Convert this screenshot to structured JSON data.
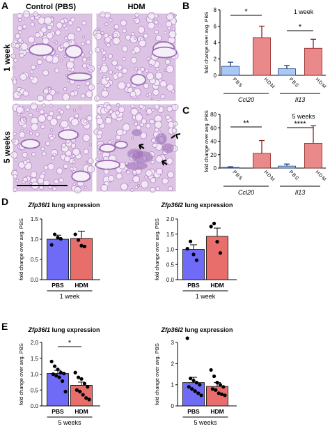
{
  "panel_letters": [
    "A",
    "B",
    "C",
    "D",
    "E"
  ],
  "histology": {
    "col_headers": [
      "Control (PBS)",
      "HDM"
    ],
    "row_labels": [
      "1 week",
      "5 weeks"
    ],
    "colors": {
      "tissue": "#dcc3e4",
      "stain": "#b07fc6",
      "airway": "#9b6bb5",
      "dark": "#5f3780"
    }
  },
  "colors": {
    "pbs_fill": "#6f6bf7",
    "hdm_fill": "#e86e6c",
    "pbs_light": "#a9c8f3",
    "hdm_light": "#e9898a",
    "error_pbs": "#1f3f7a",
    "error_hdm": "#8a1f1f"
  },
  "chart_data": [
    {
      "id": "B",
      "type": "bar",
      "ylabel": "fold change over avg. PBS",
      "ylim": [
        0,
        8
      ],
      "yticks": [
        "0",
        "2",
        "4",
        "6",
        "8"
      ],
      "period_label": "1 week",
      "categories": [
        "PBS",
        "HDM",
        "PBS",
        "HDM"
      ],
      "groups": [
        "Ccl20",
        "Il13"
      ],
      "values": [
        1.1,
        4.6,
        0.8,
        3.3
      ],
      "errors": [
        0.5,
        1.4,
        0.4,
        1.1
      ],
      "significance": [
        "*",
        "*"
      ]
    },
    {
      "id": "C",
      "type": "bar",
      "ylabel": "fold change over avg. PBS",
      "ylim": [
        0,
        80
      ],
      "yticks": [
        "0",
        "20",
        "40",
        "60",
        "80"
      ],
      "period_label": "5 weeks",
      "categories": [
        "PBS",
        "HDM",
        "PBS",
        "HDM"
      ],
      "groups": [
        "Ccl20",
        "Il13"
      ],
      "values": [
        1,
        22,
        3,
        37
      ],
      "errors": [
        1,
        19,
        3,
        26
      ],
      "significance": [
        "**",
        "****"
      ]
    },
    {
      "id": "D1",
      "type": "bar",
      "title_gene": "Zfp36l1",
      "title_rest": " lung expression",
      "ylabel": "fold change over avg. PBS",
      "ylim": [
        0,
        1.5
      ],
      "yticks": [
        "0.0",
        "0.5",
        "1.0",
        "1.5"
      ],
      "categories": [
        "PBS",
        "HDM"
      ],
      "values": [
        1.0,
        1.02
      ],
      "errors": [
        0.1,
        0.18
      ],
      "points": [
        [
          0.86,
          1.12,
          1.04,
          1.01
        ],
        [
          1.12,
          0.98,
          0.84,
          0.82
        ]
      ],
      "period_label": "1 week"
    },
    {
      "id": "D2",
      "type": "bar",
      "title_gene": "Zfp36l2",
      "title_rest": " lung expression",
      "ylabel": "fold change over avg. PBS",
      "ylim": [
        0,
        2.0
      ],
      "yticks": [
        "0.0",
        "0.5",
        "1.0",
        "1.5",
        "2.0"
      ],
      "categories": [
        "PBS",
        "HDM"
      ],
      "values": [
        1.0,
        1.43
      ],
      "errors": [
        0.15,
        0.27
      ],
      "points": [
        [
          1.02,
          1.26,
          0.83,
          0.64
        ],
        [
          1.75,
          1.85,
          1.25,
          0.88
        ]
      ],
      "period_label": "1 week"
    },
    {
      "id": "E1",
      "type": "bar",
      "title_gene": "Zfp36l1",
      "title_rest": " lung expression",
      "ylabel": "fold change over avg. PBS",
      "ylim": [
        0,
        2.0
      ],
      "yticks": [
        "0.0",
        "0.5",
        "1.0",
        "1.5",
        "2.0"
      ],
      "categories": [
        "PBS",
        "HDM"
      ],
      "values": [
        1.02,
        0.65
      ],
      "errors": [
        0.1,
        0.1
      ],
      "points": [
        [
          1.4,
          1.25,
          1.15,
          1.05,
          1.02,
          1.0,
          0.95,
          0.9,
          0.78,
          0.45
        ],
        [
          1.05,
          0.9,
          0.85,
          0.7,
          0.6,
          0.5,
          0.45,
          0.35,
          0.25,
          0.2
        ]
      ],
      "significance": "*",
      "period_label": "5 weeks"
    },
    {
      "id": "E2",
      "type": "bar",
      "title_gene": "Zfp36l2",
      "title_rest": " lung expression",
      "ylabel": "fold change over avg. PBS",
      "ylim": [
        0,
        3
      ],
      "yticks": [
        "0",
        "1",
        "2",
        "3"
      ],
      "categories": [
        "PBS",
        "HDM"
      ],
      "values": [
        1.1,
        0.92
      ],
      "errors": [
        0.25,
        0.18
      ],
      "points": [
        [
          3.2,
          1.3,
          1.2,
          1.1,
          1.0,
          0.9,
          0.8,
          0.7,
          0.6,
          0.5
        ],
        [
          1.7,
          1.4,
          1.1,
          1.0,
          0.9,
          0.8,
          0.75,
          0.6,
          0.55,
          0.5
        ]
      ],
      "period_label": "5 weeks"
    }
  ]
}
